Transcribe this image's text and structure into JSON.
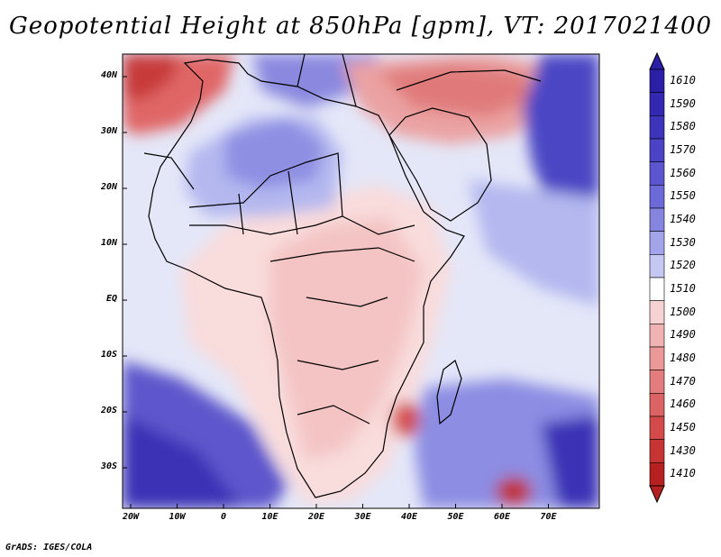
{
  "title": "Geopotential Height at 850hPa [gpm], VT: 2017021400",
  "credit": "GrADS: IGES/COLA",
  "map": {
    "lat_labels": [
      "40N",
      "30N",
      "20N",
      "10N",
      "EQ",
      "10S",
      "20S",
      "30S"
    ],
    "lon_labels": [
      "20W",
      "10W",
      "0",
      "10E",
      "20E",
      "30E",
      "40E",
      "50E",
      "60E",
      "70E"
    ]
  },
  "colorbar": {
    "levels": [
      "1610",
      "1590",
      "1580",
      "1570",
      "1560",
      "1550",
      "1540",
      "1530",
      "1520",
      "1510",
      "1500",
      "1490",
      "1480",
      "1470",
      "1460",
      "1450",
      "1430",
      "1410"
    ],
    "colors": [
      "#2a1fa6",
      "#3328b2",
      "#3d34bc",
      "#4b43c6",
      "#5b55cf",
      "#6c69d8",
      "#8584df",
      "#a3a5ea",
      "#c4c8f2",
      "#ffffff",
      "#f7d2d2",
      "#f0b3b3",
      "#ea9898",
      "#e37c7c",
      "#dc6363",
      "#d44a4a",
      "#c63434",
      "#b62020"
    ]
  },
  "colors": {
    "ocean_base": "#d8dcf6",
    "land_base": "#f8dada"
  }
}
